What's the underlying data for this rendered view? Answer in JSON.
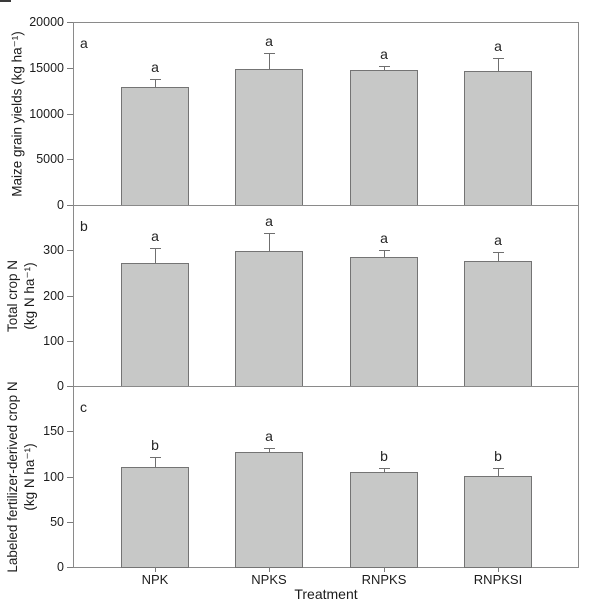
{
  "chart_data": {
    "type": "bar",
    "title": "",
    "xlabel": "Treatment",
    "categories": [
      "NPK",
      "NPKS",
      "RNPKS",
      "RNPKSI"
    ],
    "grid": false,
    "legend": "none",
    "bar_color": "#c7c8c7",
    "bar_border_color": "#747474",
    "frame_color": "#8a8a8a",
    "text_color": "#1c1c1c",
    "panels": [
      {
        "panel_letter": "a",
        "ylabel_lines": [
          "Maize grain yields (kg ha⁻¹)"
        ],
        "ylim": [
          0,
          20000
        ],
        "yticks": [
          0,
          5000,
          10000,
          15000,
          20000
        ],
        "values": [
          12900,
          14900,
          14800,
          14600
        ],
        "errors": [
          900,
          1700,
          400,
          1500
        ],
        "sig_letters": [
          "a",
          "a",
          "a",
          "a"
        ]
      },
      {
        "panel_letter": "b",
        "ylabel_lines": [
          "Total crop N",
          "(kg N ha⁻¹)"
        ],
        "ylim": [
          0,
          400
        ],
        "yticks": [
          0,
          100,
          200,
          300
        ],
        "values": [
          272,
          298,
          286,
          277
        ],
        "errors": [
          33,
          40,
          14,
          19
        ],
        "sig_letters": [
          "a",
          "a",
          "a",
          "a"
        ]
      },
      {
        "panel_letter": "c",
        "ylabel_lines": [
          "Labeled fertilizer-derived crop N",
          "(kg N ha⁻¹)"
        ],
        "ylim": [
          0,
          200
        ],
        "yticks": [
          0,
          50,
          100,
          150
        ],
        "values": [
          111,
          127,
          105,
          101
        ],
        "errors": [
          11,
          4,
          4,
          8
        ],
        "sig_letters": [
          "b",
          "a",
          "b",
          "b"
        ]
      }
    ]
  }
}
